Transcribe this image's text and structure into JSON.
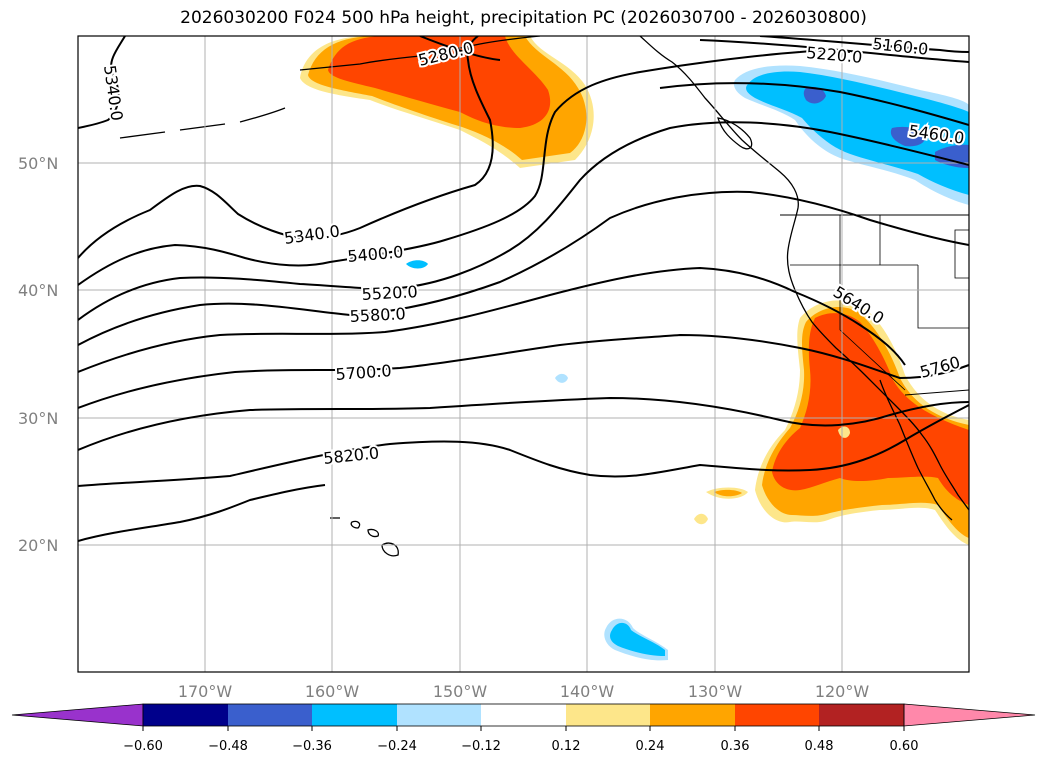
{
  "title": "2026030200 F024 500 hPa height, precipitation PC (2026030700 - 2026030800)",
  "lat_labels": [
    "50°N",
    "40°N",
    "30°N",
    "20°N"
  ],
  "lon_labels": [
    "170°W",
    "160°W",
    "150°W",
    "140°W",
    "130°W",
    "120°W"
  ],
  "contour_labels": [
    "5340.0",
    "5280.0",
    "5220.0",
    "5160.0",
    "5460.0",
    "5340.0",
    "5400.0",
    "5520.0",
    "5580.0",
    "5640.0",
    "5700.0",
    "5760",
    "5820.0"
  ],
  "colorbar": {
    "ticks": [
      "−0.60",
      "−0.48",
      "−0.36",
      "−0.24",
      "−0.12",
      "0.12",
      "0.24",
      "0.36",
      "0.48",
      "0.60"
    ],
    "colors": [
      "#9932cc",
      "#00008b",
      "#3a5fcd",
      "#00bfff",
      "#b0e2ff",
      "#ffffff",
      "#fde68a",
      "#ffa500",
      "#ff4500",
      "#b22222",
      "#ff88aa"
    ]
  },
  "colors": {
    "negative_light": "#b0e2ff",
    "negative_mid": "#00bfff",
    "negative_strong": "#3a5fcd",
    "positive_light": "#fde68a",
    "positive_mid": "#ffa500",
    "positive_strong": "#ff4500",
    "gridline": "#b0b0b0"
  }
}
